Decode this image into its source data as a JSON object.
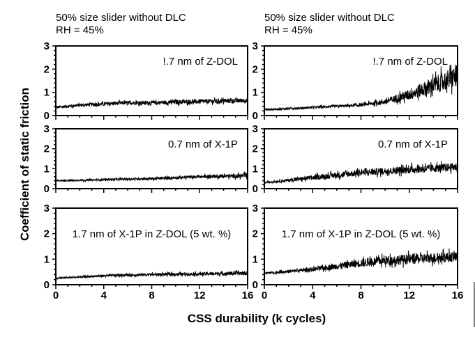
{
  "chart_data": {
    "type": "line",
    "ylabel": "Coefficient of static friction",
    "xlabel": "CSS durability (k cycles)",
    "xlim": [
      0,
      16
    ],
    "ylim": [
      0,
      3
    ],
    "xticks": [
      "0",
      "4",
      "8",
      "12",
      "16"
    ],
    "yticks": [
      "0",
      "1",
      "2",
      "3"
    ],
    "columns": [
      {
        "title": "50% size slider without DLC",
        "subtitle": "RH = 45%"
      },
      {
        "title": "50% size slider without DLC",
        "subtitle": "RH = 45%"
      }
    ],
    "panels": [
      {
        "column": 0,
        "row": 0,
        "annotation": "!.7 nm of Z-DOL",
        "x": [
          0,
          2,
          4,
          6,
          8,
          10,
          12,
          14,
          16
        ],
        "y": [
          0.35,
          0.45,
          0.5,
          0.55,
          0.55,
          0.58,
          0.6,
          0.63,
          0.65
        ],
        "noise": [
          0.08,
          0.08,
          0.1,
          0.1,
          0.1,
          0.12,
          0.12,
          0.12,
          0.12
        ]
      },
      {
        "column": 1,
        "row": 0,
        "annotation": "!.7 nm of Z-DOL",
        "x": [
          0,
          2,
          4,
          6,
          8,
          10,
          12,
          14,
          16
        ],
        "y": [
          0.25,
          0.3,
          0.35,
          0.4,
          0.45,
          0.6,
          0.9,
          1.3,
          1.7
        ],
        "noise": [
          0.05,
          0.05,
          0.06,
          0.07,
          0.08,
          0.15,
          0.3,
          0.45,
          0.6
        ]
      },
      {
        "column": 0,
        "row": 1,
        "annotation": "0.7 nm of X-1P",
        "x": [
          0,
          2,
          4,
          6,
          8,
          10,
          12,
          14,
          16
        ],
        "y": [
          0.4,
          0.42,
          0.45,
          0.48,
          0.5,
          0.55,
          0.6,
          0.62,
          0.65
        ],
        "noise": [
          0.05,
          0.05,
          0.06,
          0.07,
          0.08,
          0.09,
          0.1,
          0.12,
          0.15
        ]
      },
      {
        "column": 1,
        "row": 1,
        "annotation": "0.7 nm of X-1P",
        "x": [
          0,
          2,
          4,
          6,
          8,
          10,
          12,
          14,
          16
        ],
        "y": [
          0.3,
          0.42,
          0.55,
          0.68,
          0.8,
          0.88,
          0.95,
          1.02,
          1.1
        ],
        "noise": [
          0.05,
          0.1,
          0.15,
          0.18,
          0.2,
          0.22,
          0.24,
          0.25,
          0.25
        ]
      },
      {
        "column": 0,
        "row": 2,
        "annotation": "1.7 nm of X-1P in Z-DOL (5 wt. %)",
        "x": [
          0,
          2,
          4,
          6,
          8,
          10,
          12,
          14,
          16
        ],
        "y": [
          0.25,
          0.3,
          0.35,
          0.38,
          0.4,
          0.41,
          0.42,
          0.44,
          0.45
        ],
        "noise": [
          0.04,
          0.05,
          0.06,
          0.07,
          0.07,
          0.08,
          0.08,
          0.09,
          0.1
        ]
      },
      {
        "column": 1,
        "row": 2,
        "annotation": "1.7 nm of X-1P in Z-DOL (5 wt. %)",
        "x": [
          0,
          2,
          4,
          6,
          8,
          10,
          12,
          14,
          16
        ],
        "y": [
          0.45,
          0.52,
          0.6,
          0.72,
          0.85,
          0.95,
          1.0,
          1.05,
          1.1
        ],
        "noise": [
          0.05,
          0.08,
          0.1,
          0.15,
          0.2,
          0.22,
          0.25,
          0.25,
          0.25
        ]
      }
    ]
  }
}
